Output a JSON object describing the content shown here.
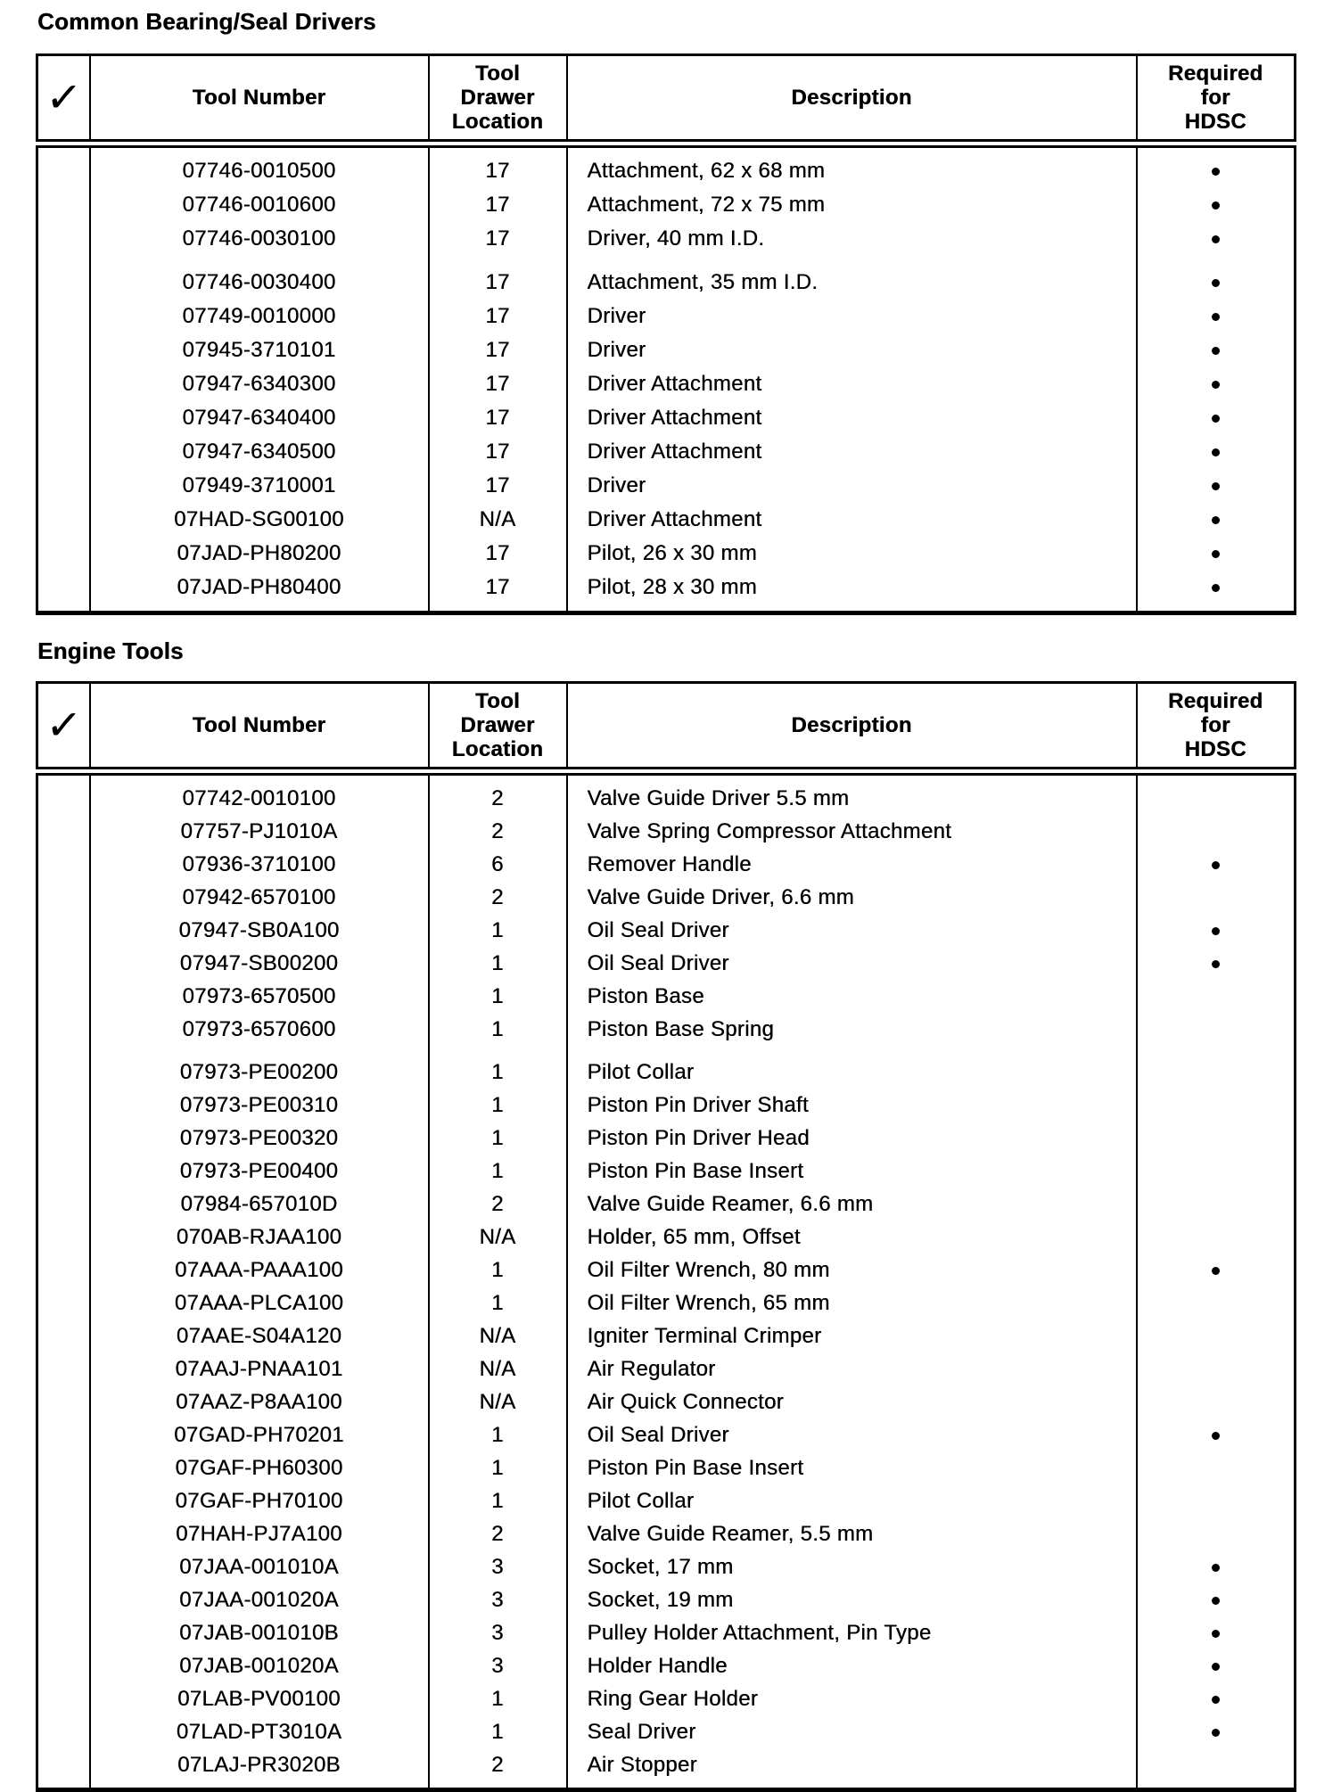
{
  "document": {
    "tables": [
      {
        "title": "Common Bearing/Seal Drivers",
        "headers": {
          "check": "✓",
          "tool_number": "Tool Number",
          "drawer_location": "Tool\nDrawer\nLocation",
          "description": "Description",
          "required": "Required\nfor\nHDSC"
        },
        "rows": [
          {
            "tool_number": "07746-0010500",
            "drawer": "17",
            "description": "Attachment, 62 x 68 mm",
            "required": true
          },
          {
            "tool_number": "07746-0010600",
            "drawer": "17",
            "description": "Attachment, 72 x 75 mm",
            "required": true
          },
          {
            "tool_number": "07746-0030100",
            "drawer": "17",
            "description": "Driver, 40 mm I.D.",
            "required": true
          },
          {
            "tool_number": "07746-0030400",
            "drawer": "17",
            "description": "Attachment, 35 mm I.D.",
            "required": true,
            "gap_before": true
          },
          {
            "tool_number": "07749-0010000",
            "drawer": "17",
            "description": "Driver",
            "required": true
          },
          {
            "tool_number": "07945-3710101",
            "drawer": "17",
            "description": "Driver",
            "required": true
          },
          {
            "tool_number": "07947-6340300",
            "drawer": "17",
            "description": "Driver Attachment",
            "required": true
          },
          {
            "tool_number": "07947-6340400",
            "drawer": "17",
            "description": "Driver Attachment",
            "required": true
          },
          {
            "tool_number": "07947-6340500",
            "drawer": "17",
            "description": "Driver Attachment",
            "required": true
          },
          {
            "tool_number": "07949-3710001",
            "drawer": "17",
            "description": "Driver",
            "required": true
          },
          {
            "tool_number": "07HAD-SG00100",
            "drawer": "N/A",
            "description": "Driver Attachment",
            "required": true
          },
          {
            "tool_number": "07JAD-PH80200",
            "drawer": "17",
            "description": "Pilot, 26 x 30 mm",
            "required": true
          },
          {
            "tool_number": "07JAD-PH80400",
            "drawer": "17",
            "description": "Pilot, 28 x 30 mm",
            "required": true
          }
        ]
      },
      {
        "title": "Engine Tools",
        "headers": {
          "check": "✓",
          "tool_number": "Tool Number",
          "drawer_location": "Tool\nDrawer\nLocation",
          "description": "Description",
          "required": "Required\nfor\nHDSC"
        },
        "rows": [
          {
            "tool_number": "07742-0010100",
            "drawer": "2",
            "description": "Valve Guide Driver 5.5 mm",
            "required": false
          },
          {
            "tool_number": "07757-PJ1010A",
            "drawer": "2",
            "description": "Valve Spring Compressor Attachment",
            "required": false
          },
          {
            "tool_number": "07936-3710100",
            "drawer": "6",
            "description": "Remover Handle",
            "required": true
          },
          {
            "tool_number": "07942-6570100",
            "drawer": "2",
            "description": "Valve Guide Driver, 6.6 mm",
            "required": false
          },
          {
            "tool_number": "07947-SB0A100",
            "drawer": "1",
            "description": "Oil Seal Driver",
            "required": true
          },
          {
            "tool_number": "07947-SB00200",
            "drawer": "1",
            "description": "Oil Seal Driver",
            "required": true
          },
          {
            "tool_number": "07973-6570500",
            "drawer": "1",
            "description": "Piston Base",
            "required": false
          },
          {
            "tool_number": "07973-6570600",
            "drawer": "1",
            "description": "Piston Base Spring",
            "required": false
          },
          {
            "tool_number": "07973-PE00200",
            "drawer": "1",
            "description": "Pilot Collar",
            "required": false,
            "gap_before": true
          },
          {
            "tool_number": "07973-PE00310",
            "drawer": "1",
            "description": "Piston Pin Driver Shaft",
            "required": false
          },
          {
            "tool_number": "07973-PE00320",
            "drawer": "1",
            "description": "Piston Pin Driver Head",
            "required": false
          },
          {
            "tool_number": "07973-PE00400",
            "drawer": "1",
            "description": "Piston Pin Base Insert",
            "required": false
          },
          {
            "tool_number": "07984-657010D",
            "drawer": "2",
            "description": "Valve Guide Reamer, 6.6 mm",
            "required": false
          },
          {
            "tool_number": "070AB-RJAA100",
            "drawer": "N/A",
            "description": "Holder, 65 mm, Offset",
            "required": false
          },
          {
            "tool_number": "07AAA-PAAA100",
            "drawer": "1",
            "description": "Oil Filter Wrench, 80 mm",
            "required": true
          },
          {
            "tool_number": "07AAA-PLCA100",
            "drawer": "1",
            "description": "Oil Filter Wrench, 65 mm",
            "required": false
          },
          {
            "tool_number": "07AAE-S04A120",
            "drawer": "N/A",
            "description": "Igniter Terminal Crimper",
            "required": false
          },
          {
            "tool_number": "07AAJ-PNAA101",
            "drawer": "N/A",
            "description": "Air Regulator",
            "required": false
          },
          {
            "tool_number": "07AAZ-P8AA100",
            "drawer": "N/A",
            "description": "Air Quick Connector",
            "required": false
          },
          {
            "tool_number": "07GAD-PH70201",
            "drawer": "1",
            "description": "Oil Seal Driver",
            "required": true
          },
          {
            "tool_number": "07GAF-PH60300",
            "drawer": "1",
            "description": "Piston Pin Base Insert",
            "required": false
          },
          {
            "tool_number": "07GAF-PH70100",
            "drawer": "1",
            "description": "Pilot Collar",
            "required": false
          },
          {
            "tool_number": "07HAH-PJ7A100",
            "drawer": "2",
            "description": "Valve Guide Reamer, 5.5 mm",
            "required": false
          },
          {
            "tool_number": "07JAA-001010A",
            "drawer": "3",
            "description": "Socket, 17 mm",
            "required": true
          },
          {
            "tool_number": "07JAA-001020A",
            "drawer": "3",
            "description": "Socket, 19 mm",
            "required": true
          },
          {
            "tool_number": "07JAB-001010B",
            "drawer": "3",
            "description": "Pulley Holder Attachment, Pin Type",
            "required": true
          },
          {
            "tool_number": "07JAB-001020A",
            "drawer": "3",
            "description": "Holder Handle",
            "required": true
          },
          {
            "tool_number": "07LAB-PV00100",
            "drawer": "1",
            "description": "Ring Gear Holder",
            "required": true
          },
          {
            "tool_number": "07LAD-PT3010A",
            "drawer": "1",
            "description": "Seal Driver",
            "required": true
          },
          {
            "tool_number": "07LAJ-PR3020B",
            "drawer": "2",
            "description": "Air Stopper",
            "required": false
          }
        ]
      }
    ]
  }
}
